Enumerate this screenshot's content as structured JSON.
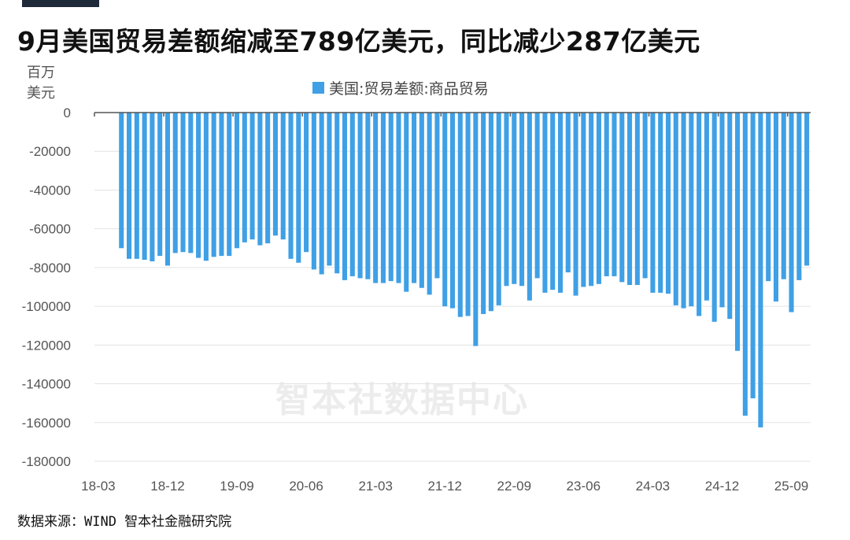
{
  "title": "9月美国贸易差额缩减至789亿美元，同比减少287亿美元",
  "unit_label_line1": "百万",
  "unit_label_line2": "美元",
  "legend_label": "美国:贸易差额:商品贸易",
  "watermark": "智本社数据中心",
  "source": "数据来源：WIND 智本社金融研究院",
  "chart_data": {
    "type": "bar",
    "title": "9月美国贸易差额缩减至789亿美元，同比减少287亿美元",
    "ylabel": "百万美元",
    "ylim": [
      -180000,
      0
    ],
    "yticks": [
      0,
      -20000,
      -40000,
      -60000,
      -80000,
      -100000,
      -120000,
      -140000,
      -160000,
      -180000
    ],
    "xtick_labels": [
      "18-03",
      "18-12",
      "19-09",
      "20-06",
      "21-03",
      "21-12",
      "22-09",
      "23-06",
      "24-03",
      "24-12",
      "25-09"
    ],
    "grid": true,
    "legend_position": "top",
    "color": "#3fa0e6",
    "series": [
      {
        "name": "美国:贸易差额:商品贸易",
        "values": [
          null,
          null,
          null,
          -70000,
          -75500,
          -75500,
          -76000,
          -76800,
          -74000,
          -79000,
          -72500,
          -72000,
          -72500,
          -75000,
          -76500,
          -74500,
          -74000,
          -74000,
          -70000,
          -67000,
          -65500,
          -68500,
          -67500,
          -63500,
          -65500,
          -75500,
          -77500,
          -72000,
          -81000,
          -83500,
          -79000,
          -83000,
          -86500,
          -84500,
          -85500,
          -86000,
          -88000,
          -88000,
          -87000,
          -88000,
          -92500,
          -88000,
          -90500,
          -94000,
          -85500,
          -100000,
          -101000,
          -105500,
          -105000,
          -120500,
          -104000,
          -102500,
          -99500,
          -89500,
          -88500,
          -89500,
          -97000,
          -85500,
          -93000,
          -91500,
          -93000,
          -82500,
          -94500,
          -90000,
          -89500,
          -88500,
          -84500,
          -84500,
          -87500,
          -89000,
          -89000,
          -85500,
          -93000,
          -93000,
          -93500,
          -99500,
          -101000,
          -100000,
          -105000,
          -97000,
          -108000,
          -100500,
          -106500,
          -123000,
          -156500,
          -147500,
          -162500,
          -87000,
          -97500,
          -86000,
          -103000,
          -86500,
          -79000
        ]
      }
    ]
  }
}
